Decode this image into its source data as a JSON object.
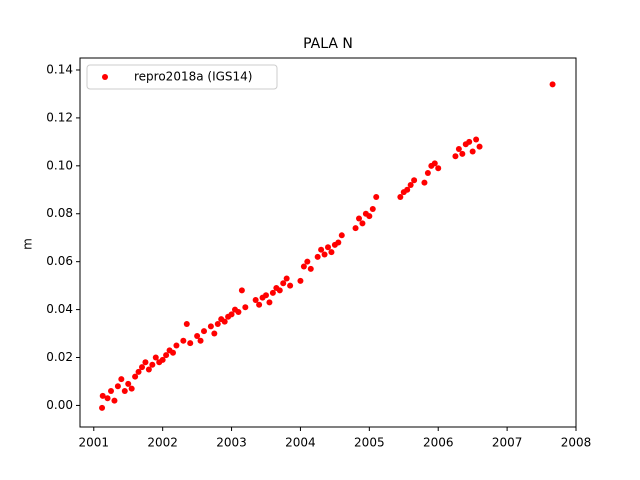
{
  "chart_data": {
    "type": "scatter",
    "title": "PALA N",
    "y_label": "m",
    "xlim": [
      2000.8,
      2008.0
    ],
    "xticks": [
      2001,
      2002,
      2003,
      2004,
      2005,
      2006,
      2007,
      2008
    ],
    "ylim": [
      -0.009,
      0.145
    ],
    "yticks": [
      {
        "value": 0,
        "label": "0.00"
      },
      0.02,
      0.04,
      0.06,
      0.08,
      {
        "value": 0.1,
        "label": "0.10"
      },
      0.12,
      0.14
    ],
    "legend": "upper left",
    "grid": false,
    "series": [
      {
        "name": "repro2018a (IGS14)",
        "color": "#ff0000",
        "x": [
          2001.12,
          2001.13,
          2001.2,
          2001.25,
          2001.3,
          2001.35,
          2001.4,
          2001.45,
          2001.5,
          2001.55,
          2001.6,
          2001.65,
          2001.7,
          2001.75,
          2001.8,
          2001.85,
          2001.9,
          2001.95,
          2002.0,
          2002.05,
          2002.1,
          2002.15,
          2002.2,
          2002.3,
          2002.35,
          2002.4,
          2002.5,
          2002.55,
          2002.6,
          2002.7,
          2002.75,
          2002.8,
          2002.85,
          2002.9,
          2002.95,
          2003.0,
          2003.05,
          2003.1,
          2003.15,
          2003.2,
          2003.35,
          2003.4,
          2003.45,
          2003.5,
          2003.55,
          2003.6,
          2003.65,
          2003.7,
          2003.75,
          2003.8,
          2003.85,
          2004.0,
          2004.05,
          2004.1,
          2004.15,
          2004.25,
          2004.3,
          2004.35,
          2004.4,
          2004.45,
          2004.5,
          2004.55,
          2004.6,
          2004.8,
          2004.85,
          2004.9,
          2004.95,
          2005.0,
          2005.05,
          2005.1,
          2005.45,
          2005.5,
          2005.55,
          2005.6,
          2005.65,
          2005.8,
          2005.85,
          2005.9,
          2005.95,
          2006.0,
          2006.25,
          2006.3,
          2006.35,
          2006.4,
          2006.45,
          2006.5,
          2006.55,
          2006.6,
          2007.66
        ],
        "values": [
          -0.001,
          0.004,
          0.003,
          0.006,
          0.002,
          0.008,
          0.011,
          0.006,
          0.009,
          0.007,
          0.012,
          0.014,
          0.016,
          0.018,
          0.015,
          0.017,
          0.02,
          0.018,
          0.019,
          0.021,
          0.023,
          0.022,
          0.025,
          0.027,
          0.034,
          0.026,
          0.029,
          0.027,
          0.031,
          0.033,
          0.03,
          0.034,
          0.036,
          0.035,
          0.037,
          0.038,
          0.04,
          0.039,
          0.048,
          0.041,
          0.044,
          0.042,
          0.045,
          0.046,
          0.043,
          0.047,
          0.049,
          0.048,
          0.051,
          0.053,
          0.05,
          0.052,
          0.058,
          0.06,
          0.057,
          0.062,
          0.065,
          0.063,
          0.066,
          0.064,
          0.067,
          0.068,
          0.071,
          0.074,
          0.078,
          0.076,
          0.08,
          0.079,
          0.082,
          0.087,
          0.087,
          0.089,
          0.09,
          0.092,
          0.094,
          0.093,
          0.097,
          0.1,
          0.101,
          0.099,
          0.104,
          0.107,
          0.105,
          0.109,
          0.11,
          0.106,
          0.111,
          0.108,
          0.134
        ]
      }
    ]
  }
}
